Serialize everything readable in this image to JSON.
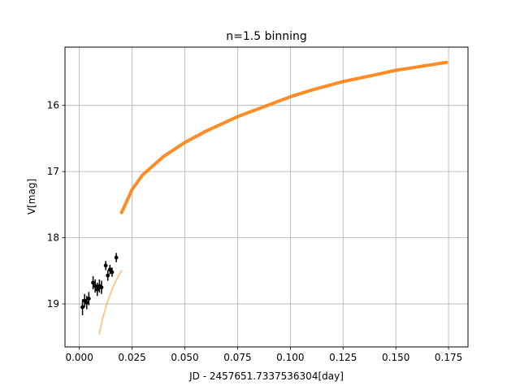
{
  "chart_data": {
    "type": "scatter",
    "title": "n=1.5 binning",
    "xlabel": "JD - 2457651.7337536304[day]",
    "ylabel": "V[mag]",
    "xlim": [
      -0.0068,
      0.1842
    ],
    "ylim": [
      19.65,
      15.12
    ],
    "y_inverted": true,
    "grid": true,
    "x_ticks": [
      0.0,
      0.025,
      0.05,
      0.075,
      0.1,
      0.125,
      0.15,
      0.175
    ],
    "x_tick_labels": [
      "0.000",
      "0.025",
      "0.050",
      "0.075",
      "0.100",
      "0.125",
      "0.150",
      "0.175"
    ],
    "y_ticks": [
      16,
      17,
      18,
      19
    ],
    "y_tick_labels": [
      "16",
      "17",
      "18",
      "19"
    ],
    "colors": {
      "model": "#ff7f0e",
      "observed": "#000000",
      "grid": "#b0b0b0"
    },
    "series": [
      {
        "kind": "curve",
        "role": "model-main",
        "color": "#ff7f0e",
        "opacity": 0.9,
        "x": [
          0.02,
          0.025,
          0.03,
          0.04,
          0.05,
          0.06,
          0.075,
          0.09,
          0.1,
          0.11,
          0.125,
          0.14,
          0.15,
          0.16,
          0.17,
          0.174
        ],
        "y": [
          17.62,
          17.27,
          17.05,
          16.77,
          16.56,
          16.39,
          16.17,
          15.99,
          15.87,
          15.77,
          15.64,
          15.54,
          15.47,
          15.42,
          15.37,
          15.35
        ]
      },
      {
        "kind": "curve",
        "role": "model-early",
        "color": "#ff7f0e",
        "opacity": 0.45,
        "x": [
          0.0095,
          0.011,
          0.013,
          0.015,
          0.017,
          0.019,
          0.02
        ],
        "y": [
          19.45,
          19.22,
          19.0,
          18.82,
          18.67,
          18.55,
          18.5
        ]
      },
      {
        "kind": "errorbar",
        "role": "observed",
        "color": "#000000",
        "x": [
          0.0015,
          0.0025,
          0.0035,
          0.0045,
          0.0065,
          0.0075,
          0.0085,
          0.0095,
          0.0105,
          0.0125,
          0.0135,
          0.0145,
          0.0155,
          0.0175
        ],
        "y": [
          19.05,
          18.95,
          18.98,
          18.92,
          18.68,
          18.73,
          18.78,
          18.73,
          18.75,
          18.42,
          18.57,
          18.48,
          18.52,
          18.3
        ],
        "yerr": [
          0.12,
          0.1,
          0.1,
          0.1,
          0.1,
          0.1,
          0.1,
          0.1,
          0.1,
          0.07,
          0.08,
          0.07,
          0.07,
          0.07
        ]
      }
    ]
  }
}
